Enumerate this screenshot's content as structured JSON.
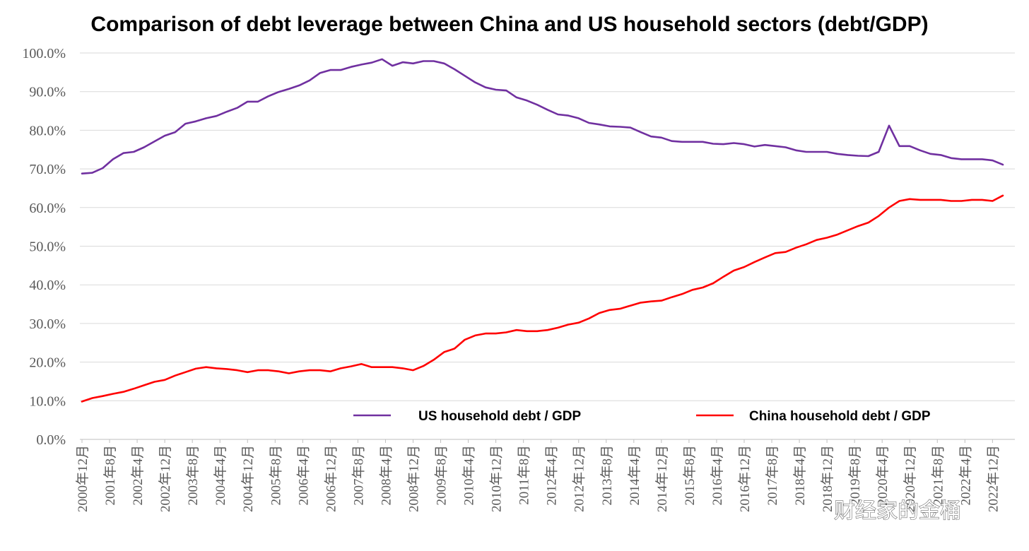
{
  "chart_data": {
    "type": "line",
    "title": "Comparison of debt leverage between China and US household sectors (debt/GDP)",
    "ylim": [
      0,
      100
    ],
    "ytick_labels": [
      "0.0%",
      "10.0%",
      "20.0%",
      "30.0%",
      "40.0%",
      "50.0%",
      "60.0%",
      "70.0%",
      "80.0%",
      "90.0%",
      "100.0%"
    ],
    "grid": true,
    "legend_position": "bottom",
    "x_tick_labels": [
      "2000年12月",
      "2001年8月",
      "2002年4月",
      "2002年12月",
      "2003年8月",
      "2004年4月",
      "2004年12月",
      "2005年8月",
      "2006年4月",
      "2006年12月",
      "2007年8月",
      "2008年4月",
      "2008年12月",
      "2009年8月",
      "2010年4月",
      "2010年12月",
      "2011年8月",
      "2012年4月",
      "2012年12月",
      "2013年8月",
      "2014年4月",
      "2014年12月",
      "2015年8月",
      "2016年4月",
      "2016年12月",
      "2017年8月",
      "2018年4月",
      "2018年12月",
      "2019年8月",
      "2020年4月",
      "2020年12月",
      "2021年8月",
      "2022年4月",
      "2022年12月"
    ],
    "series": [
      {
        "name": "US household debt / GDP",
        "color": "#7030a0",
        "values": [
          68.8,
          69.0,
          70.2,
          72.5,
          74.1,
          74.4,
          75.6,
          77.1,
          78.6,
          79.5,
          81.7,
          82.3,
          83.1,
          83.7,
          84.8,
          85.8,
          87.4,
          87.4,
          88.8,
          89.9,
          90.7,
          91.6,
          92.9,
          94.8,
          95.6,
          95.6,
          96.4,
          97.0,
          97.5,
          98.4,
          96.7,
          97.6,
          97.3,
          97.9,
          97.9,
          97.3,
          95.8,
          94.1,
          92.4,
          91.1,
          90.5,
          90.3,
          88.5,
          87.7,
          86.6,
          85.3,
          84.1,
          83.8,
          83.1,
          81.9,
          81.5,
          81.0,
          80.9,
          80.7,
          79.5,
          78.4,
          78.1,
          77.2,
          77.0,
          77.0,
          77.0,
          76.5,
          76.4,
          76.7,
          76.4,
          75.8,
          76.2,
          75.9,
          75.6,
          74.8,
          74.4,
          74.4,
          74.4,
          73.9,
          73.6,
          73.4,
          73.3,
          74.4,
          81.2,
          75.9,
          75.9,
          74.8,
          73.9,
          73.6,
          72.8,
          72.5,
          72.5,
          72.5,
          72.2,
          71.1
        ],
        "last_value": 71.1
      },
      {
        "name": "China household debt / GDP",
        "color": "#ff0000",
        "values": [
          9.8,
          10.7,
          11.2,
          11.8,
          12.3,
          13.1,
          14.0,
          14.9,
          15.4,
          16.5,
          17.4,
          18.3,
          18.7,
          18.4,
          18.2,
          17.9,
          17.4,
          17.9,
          17.9,
          17.6,
          17.1,
          17.6,
          17.9,
          17.9,
          17.6,
          18.4,
          18.9,
          19.5,
          18.7,
          18.7,
          18.7,
          18.4,
          17.9,
          19.0,
          20.6,
          22.6,
          23.5,
          25.8,
          26.9,
          27.4,
          27.4,
          27.7,
          28.3,
          28.0,
          28.0,
          28.3,
          28.9,
          29.7,
          30.2,
          31.3,
          32.7,
          33.5,
          33.8,
          34.6,
          35.4,
          35.7,
          35.9,
          36.8,
          37.6,
          38.7,
          39.3,
          40.4,
          42.1,
          43.7,
          44.6,
          45.9,
          47.1,
          48.2,
          48.5,
          49.6,
          50.5,
          51.6,
          52.2,
          53.0,
          54.1,
          55.2,
          56.1,
          57.8,
          60.0,
          61.7,
          62.2,
          62.0,
          62.0,
          62.0,
          61.7,
          61.7,
          62.0,
          62.0,
          61.7,
          63.1
        ]
      }
    ]
  },
  "watermark": "财经家的金桶"
}
